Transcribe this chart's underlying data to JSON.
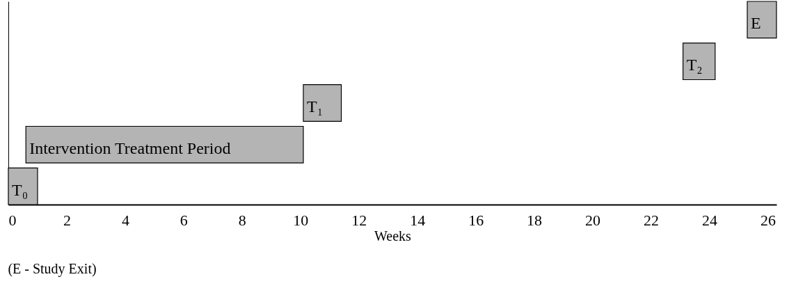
{
  "chart_data": {
    "type": "bar",
    "orientation": "horizontal",
    "xlabel": "Weeks",
    "categories": [
      null,
      null,
      null,
      null,
      null
    ],
    "base": [
      25.3,
      23.1,
      10.1,
      0.6,
      0
    ],
    "values": [
      1.0,
      1.1,
      1.3,
      9.5,
      1.0
    ],
    "value_labels": [
      "E",
      "T₂",
      "T₁",
      "Intervention Treatment Period",
      "T₀"
    ],
    "color": "#b4b4b4",
    "xlim": [
      0,
      26.3
    ],
    "xticks": [
      0,
      2,
      4,
      6,
      8,
      10,
      12,
      14,
      16,
      18,
      20,
      22,
      24,
      26
    ],
    "tick_labels": "x",
    "grid": false,
    "annotations": [
      "(E - Study Exit)"
    ]
  }
}
